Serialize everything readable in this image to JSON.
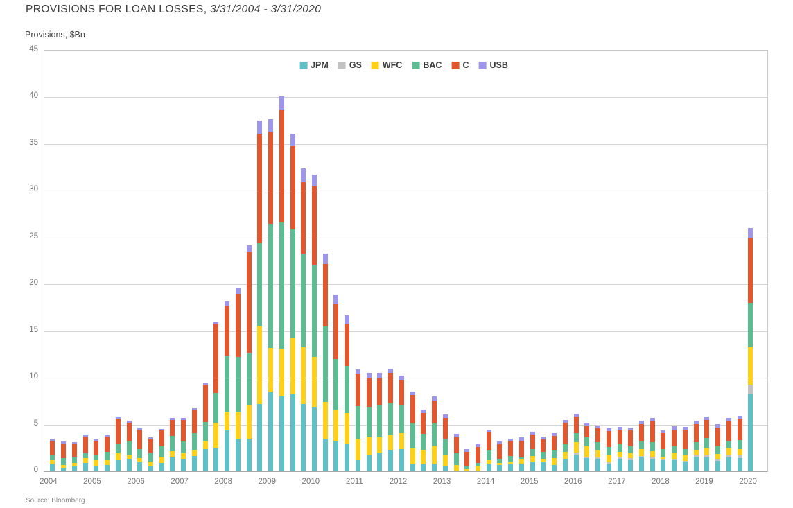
{
  "page": {
    "title_main": "PROVISIONS FOR LOAN LOSSES,",
    "title_dates": "3/31/2004 - 3/31/2020",
    "y_axis_title": "Provisions, $Bn",
    "source": "Source: Bloomberg"
  },
  "chart_data": {
    "type": "bar",
    "stacked": true,
    "title": "PROVISIONS FOR LOAN LOSSES, 3/31/2004 - 3/31/2020",
    "ylabel": "Provisions, $Bn",
    "ylim": [
      0,
      45
    ],
    "y_ticks": [
      45,
      40,
      35,
      30,
      25,
      20,
      15,
      10,
      5,
      0
    ],
    "grid": "horizontal",
    "legend_position": "top-center",
    "frequency": "quarterly",
    "x_start": "2004 Q1",
    "x_end": "2020 Q1",
    "n_bars": 65,
    "x_tick_labels": [
      "2004",
      "2005",
      "2006",
      "2007",
      "2008",
      "2009",
      "2010",
      "2011",
      "2012",
      "2013",
      "2014",
      "2015",
      "2016",
      "2017",
      "2018",
      "2019",
      "2020"
    ],
    "series": [
      {
        "name": "JPM",
        "color": "#5ec1c7",
        "values": [
          0.8,
          0.3,
          0.5,
          0.9,
          0.6,
          0.7,
          1.2,
          1.3,
          1.0,
          0.6,
          0.9,
          1.55,
          1.3,
          1.6,
          2.4,
          2.5,
          4.4,
          3.4,
          3.5,
          7.2,
          8.5,
          8.0,
          8.2,
          7.2,
          6.9,
          3.4,
          3.2,
          3.0,
          1.2,
          1.8,
          1.9,
          2.3,
          2.4,
          0.75,
          0.8,
          0.8,
          0.6,
          0.05,
          0.1,
          0.1,
          0.85,
          0.7,
          0.75,
          0.85,
          1.0,
          0.95,
          0.7,
          1.3,
          1.8,
          1.4,
          1.3,
          0.85,
          1.3,
          1.2,
          1.45,
          1.3,
          1.2,
          1.2,
          0.95,
          1.55,
          1.5,
          1.15,
          1.5,
          1.4,
          8.3
        ]
      },
      {
        "name": "GS",
        "color": "#c2c2c2",
        "values": [
          0,
          0,
          0,
          0,
          0,
          0,
          0,
          0,
          0,
          0,
          0,
          0,
          0,
          0,
          0,
          0,
          0,
          0,
          0,
          0,
          0,
          0,
          0,
          0,
          0,
          0,
          0,
          0,
          0,
          0,
          0,
          0,
          0,
          0,
          0,
          0,
          0,
          0,
          0,
          0,
          0,
          0,
          0,
          0,
          0,
          0,
          0,
          0,
          0.2,
          0.15,
          0.15,
          0.15,
          0.2,
          0.2,
          0.2,
          0.2,
          0.15,
          0.15,
          0.15,
          0.2,
          0.2,
          0.2,
          0.3,
          0.35,
          0.95
        ]
      },
      {
        "name": "WFC",
        "color": "#fdd117",
        "values": [
          0.4,
          0.4,
          0.4,
          0.5,
          0.6,
          0.5,
          0.7,
          0.5,
          0.4,
          0.4,
          0.6,
          0.6,
          0.7,
          0.7,
          0.9,
          2.6,
          2.0,
          3.0,
          3.6,
          8.4,
          4.7,
          5.1,
          6.0,
          6.1,
          5.3,
          4.0,
          3.4,
          3.2,
          2.2,
          1.8,
          1.8,
          1.6,
          1.7,
          1.8,
          1.5,
          1.9,
          1.2,
          0.65,
          0.1,
          0.5,
          0.35,
          0.2,
          0.3,
          0.4,
          0.6,
          0.3,
          0.7,
          0.8,
          1.1,
          1.1,
          0.8,
          0.8,
          0.6,
          0.55,
          0.7,
          0.65,
          0.2,
          0.55,
          0.6,
          0.5,
          0.85,
          0.5,
          0.7,
          0.65,
          4.0
        ]
      },
      {
        "name": "BAC",
        "color": "#5dbc92",
        "values": [
          0.6,
          0.7,
          0.65,
          0.6,
          0.6,
          0.9,
          1.1,
          1.4,
          1.0,
          1.0,
          1.2,
          1.6,
          1.2,
          1.8,
          2.0,
          3.3,
          6.0,
          5.8,
          5.6,
          8.8,
          13.3,
          13.5,
          11.7,
          10.0,
          9.9,
          8.1,
          5.4,
          5.1,
          3.6,
          3.3,
          3.4,
          3.4,
          3.0,
          2.6,
          1.7,
          2.4,
          1.7,
          1.2,
          0.3,
          0.3,
          1.0,
          0.4,
          0.6,
          0.2,
          0.8,
          0.8,
          0.8,
          0.8,
          1.0,
          1.0,
          0.85,
          0.8,
          0.8,
          0.7,
          0.85,
          1.0,
          0.85,
          0.8,
          0.7,
          0.9,
          1.0,
          0.85,
          0.8,
          0.95,
          4.75
        ]
      },
      {
        "name": "C",
        "color": "#e4572e",
        "values": [
          1.5,
          1.6,
          1.4,
          1.7,
          1.5,
          1.6,
          2.6,
          2.0,
          2.0,
          1.4,
          1.65,
          1.75,
          2.3,
          2.5,
          3.9,
          7.3,
          5.3,
          6.8,
          10.7,
          11.7,
          9.8,
          12.1,
          8.9,
          7.6,
          8.4,
          6.7,
          5.9,
          4.5,
          3.4,
          3.1,
          2.9,
          3.2,
          2.7,
          3.0,
          2.2,
          2.5,
          2.2,
          1.75,
          1.55,
          1.7,
          1.95,
          1.6,
          1.55,
          1.85,
          1.5,
          1.35,
          1.6,
          2.3,
          1.75,
          1.15,
          1.5,
          1.7,
          1.5,
          1.7,
          1.85,
          2.2,
          1.65,
          1.75,
          2.0,
          1.9,
          1.95,
          2.0,
          2.1,
          2.2,
          7.0
        ]
      },
      {
        "name": "USB",
        "color": "#9e96ea",
        "values": [
          0.2,
          0.2,
          0.15,
          0.15,
          0.2,
          0.15,
          0.2,
          0.2,
          0.2,
          0.2,
          0.2,
          0.2,
          0.2,
          0.2,
          0.3,
          0.25,
          0.5,
          0.6,
          0.8,
          1.4,
          1.4,
          1.4,
          1.3,
          1.5,
          1.2,
          1.1,
          1.0,
          0.9,
          0.5,
          0.5,
          0.5,
          0.5,
          0.4,
          0.35,
          0.4,
          0.4,
          0.4,
          0.35,
          0.35,
          0.3,
          0.3,
          0.3,
          0.3,
          0.3,
          0.3,
          0.3,
          0.3,
          0.3,
          0.3,
          0.3,
          0.3,
          0.3,
          0.35,
          0.35,
          0.35,
          0.35,
          0.35,
          0.35,
          0.35,
          0.35,
          0.35,
          0.35,
          0.35,
          0.35,
          1.0
        ]
      }
    ]
  }
}
